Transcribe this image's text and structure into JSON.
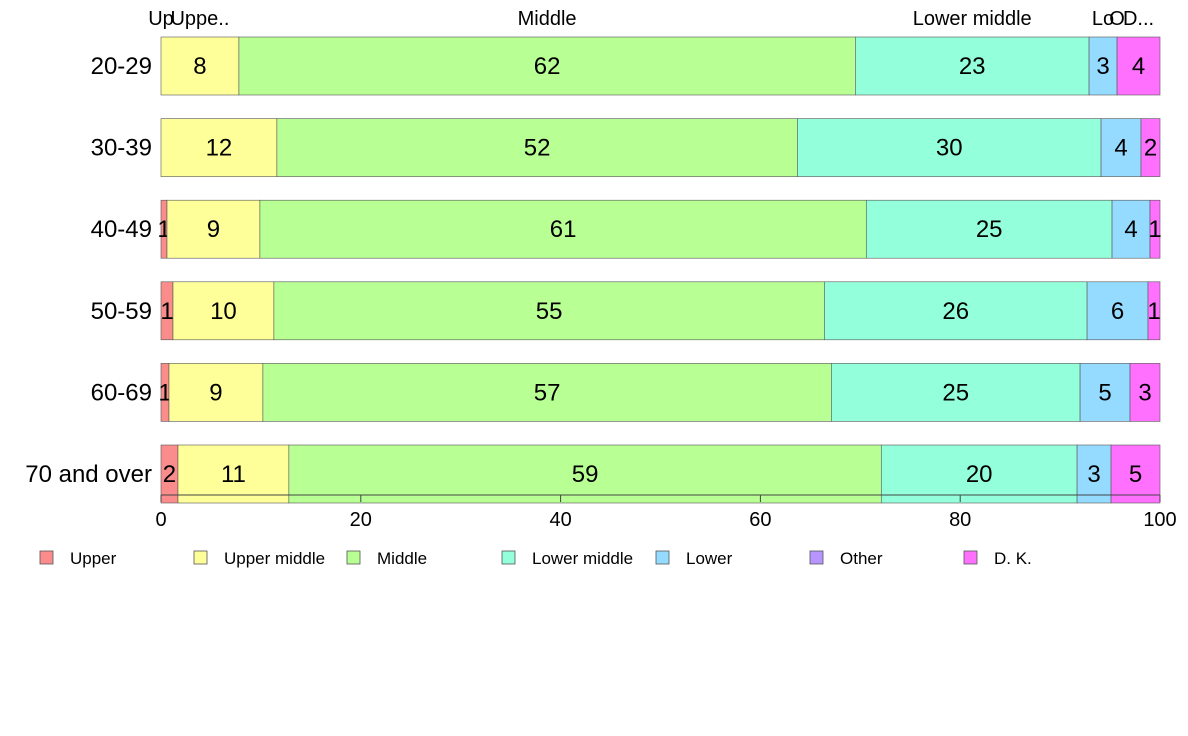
{
  "chart_data": {
    "type": "bar",
    "orientation": "horizontal",
    "stacked": true,
    "title": "",
    "xlabel": "",
    "ylabel": "",
    "xlim": [
      0,
      100
    ],
    "x_ticks": [
      "0",
      "20",
      "40",
      "60",
      "80",
      "100"
    ],
    "grid": false,
    "legend_position": "bottom",
    "categories": [
      "20-29",
      "30-39",
      "40-49",
      "50-59",
      "60-69",
      "70 and over"
    ],
    "series": [
      {
        "name": "Upper",
        "short_label": "Up",
        "color": "#FA8C8C",
        "values": [
          0,
          0,
          0.6,
          1.2,
          0.8,
          1.7
        ]
      },
      {
        "name": "Upper middle",
        "short_label": "Uppe..",
        "color": "#FFFF99",
        "values": [
          7.8,
          11.6,
          9.3,
          10.1,
          9.4,
          11.1
        ]
      },
      {
        "name": "Middle",
        "short_label": "Middle",
        "color": "#B8FF94",
        "values": [
          61.7,
          52.1,
          60.7,
          55.1,
          56.9,
          59.3
        ]
      },
      {
        "name": "Lower middle",
        "short_label": "Lower middle",
        "color": "#94FFDB",
        "values": [
          23.4,
          30.4,
          24.6,
          26.3,
          24.9,
          19.6
        ]
      },
      {
        "name": "Lower",
        "short_label": "Lo",
        "color": "#94DBFF",
        "values": [
          2.8,
          4.0,
          3.8,
          6.1,
          5.0,
          3.4
        ]
      },
      {
        "name": "Other",
        "short_label": "O",
        "color": "#B894FF",
        "values": [
          0,
          0,
          0,
          0,
          0,
          0
        ]
      },
      {
        "name": "D. K.",
        "short_label": "D...",
        "color": "#FF70FF",
        "values": [
          4.3,
          1.9,
          1.0,
          1.2,
          3.0,
          4.9
        ]
      }
    ],
    "data_labels": [
      [
        "",
        "8",
        "62",
        "23",
        "3",
        "",
        "4"
      ],
      [
        "",
        "12",
        "52",
        "30",
        "4",
        "",
        "2"
      ],
      [
        "1",
        "9",
        "61",
        "25",
        "4",
        "",
        "1"
      ],
      [
        "1",
        "10",
        "55",
        "26",
        "6",
        "",
        "1"
      ],
      [
        "1",
        "9",
        "57",
        "25",
        "5",
        "",
        "3"
      ],
      [
        "2",
        "11",
        "59",
        "20",
        "3",
        "",
        "5"
      ]
    ]
  }
}
